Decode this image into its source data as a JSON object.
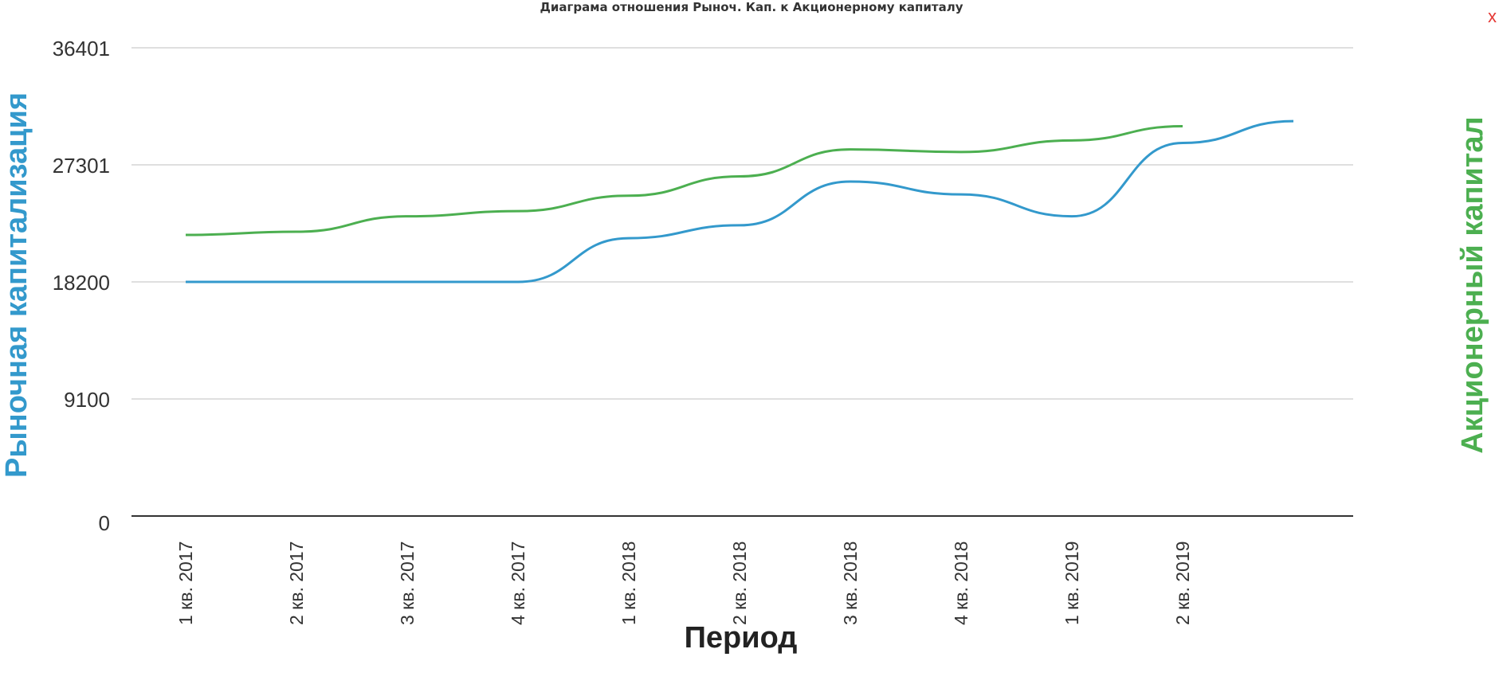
{
  "chart_data": {
    "type": "line",
    "title": "Диаграма отношения Рыноч. Кап. к Акционерному капиталу",
    "xlabel": "Период",
    "ylabel_left": "Рыночная капитализация",
    "ylabel_right": "Акционерный капитал",
    "categories": [
      "1 кв. 2017",
      "2 кв. 2017",
      "3 кв. 2017",
      "4 кв. 2017",
      "1 кв. 2018",
      "2 кв. 2018",
      "3 кв. 2018",
      "4 кв. 2018",
      "1 кв. 2019",
      "2 кв. 2019",
      ""
    ],
    "yticks": [
      0,
      9100,
      18200,
      27301,
      36401
    ],
    "ylim": [
      0,
      36401
    ],
    "grid": true,
    "series": [
      {
        "name": "Рыночная капитализация",
        "color": "#3399cc",
        "values": [
          18200,
          18200,
          18200,
          18200,
          21600,
          22600,
          26000,
          25000,
          23300,
          29000,
          30700
        ]
      },
      {
        "name": "Акционерный капитал",
        "color": "#4caf50",
        "values": [
          21850,
          22100,
          23300,
          23700,
          24900,
          26400,
          28500,
          28300,
          29200,
          30300,
          null
        ]
      }
    ]
  },
  "ui": {
    "close_label": "x"
  }
}
